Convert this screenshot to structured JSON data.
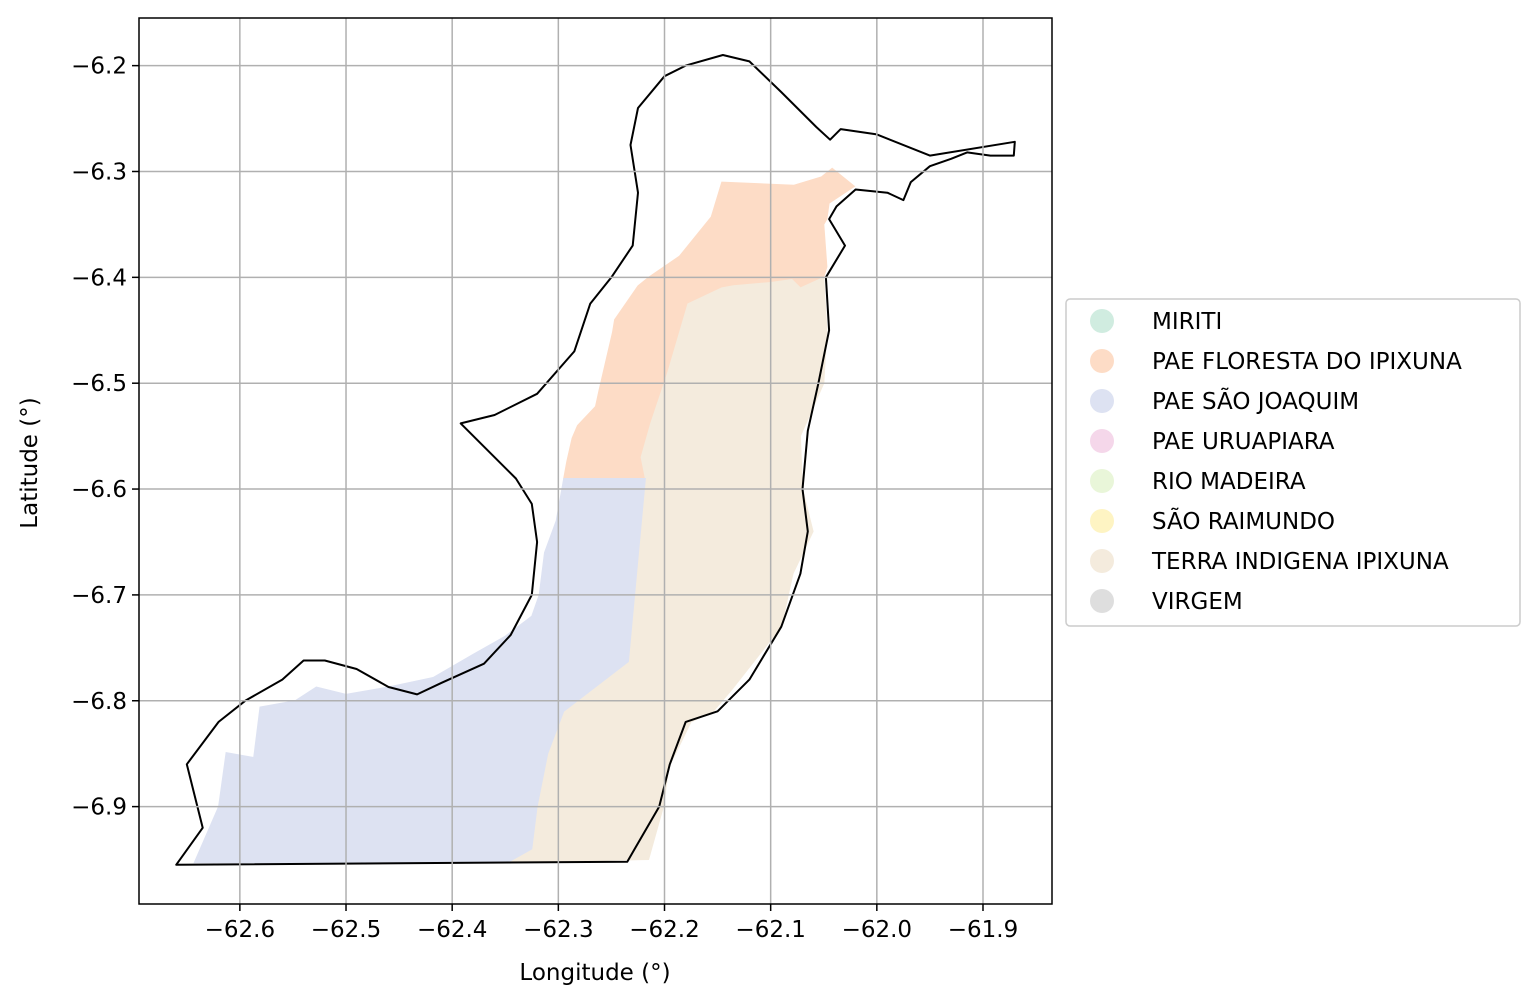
{
  "chart_data": {
    "type": "map",
    "xlabel": "Longitude (°)",
    "ylabel": "Latitude (°)",
    "xlim": [
      -62.695,
      -61.835
    ],
    "ylim": [
      -6.992,
      -6.155
    ],
    "grid": true,
    "xticks": [
      -62.6,
      -62.5,
      -62.4,
      -62.3,
      -62.2,
      -62.1,
      -62.0,
      -61.9
    ],
    "xtick_labels": [
      "−62.6",
      "−62.5",
      "−62.4",
      "−62.3",
      "−62.2",
      "−62.1",
      "−62.0",
      "−61.9"
    ],
    "yticks": [
      -6.2,
      -6.3,
      -6.4,
      -6.5,
      -6.6,
      -6.7,
      -6.8,
      -6.9
    ],
    "ytick_labels": [
      "−6.2",
      "−6.3",
      "−6.4",
      "−6.5",
      "−6.6",
      "−6.7",
      "−6.8",
      "−6.9"
    ],
    "legend_position": "right",
    "legend": [
      {
        "label": "MIRITI",
        "color": "#d0ece0"
      },
      {
        "label": "PAE FLORESTA DO IPIXUNA",
        "color": "#fddcc6"
      },
      {
        "label": "PAE SÃO JOAQUIM",
        "color": "#dde2f2"
      },
      {
        "label": "PAE URUAPIARA",
        "color": "#f5d7ea"
      },
      {
        "label": "RIO MADEIRA",
        "color": "#e9f6d9"
      },
      {
        "label": "SÃO RAIMUNDO",
        "color": "#fef4c3"
      },
      {
        "label": "TERRA INDIGENA IPIXUNA",
        "color": "#f4ebdd"
      },
      {
        "label": "VIRGEM",
        "color": "#dedede"
      }
    ],
    "regions": [
      {
        "name": "PAE FLORESTA DO IPIXUNA",
        "color": "#fddcc6",
        "coords": [
          [
            -62.146,
            -6.31
          ],
          [
            -62.078,
            -6.313
          ],
          [
            -62.052,
            -6.305
          ],
          [
            -62.042,
            -6.297
          ],
          [
            -62.021,
            -6.314
          ],
          [
            -62.045,
            -6.33
          ],
          [
            -62.047,
            -6.345
          ],
          [
            -62.05,
            -6.35
          ],
          [
            -62.047,
            -6.39
          ],
          [
            -62.05,
            -6.4
          ],
          [
            -62.072,
            -6.41
          ],
          [
            -62.08,
            -6.402
          ],
          [
            -62.101,
            -6.405
          ],
          [
            -62.135,
            -6.408
          ],
          [
            -62.146,
            -6.41
          ],
          [
            -62.178,
            -6.425
          ],
          [
            -62.197,
            -6.49
          ],
          [
            -62.213,
            -6.538
          ],
          [
            -62.222,
            -6.57
          ],
          [
            -62.218,
            -6.59
          ],
          [
            -62.295,
            -6.59
          ],
          [
            -62.292,
            -6.574
          ],
          [
            -62.287,
            -6.552
          ],
          [
            -62.282,
            -6.54
          ],
          [
            -62.265,
            -6.522
          ],
          [
            -62.262,
            -6.508
          ],
          [
            -62.256,
            -6.482
          ],
          [
            -62.249,
            -6.452
          ],
          [
            -62.247,
            -6.44
          ],
          [
            -62.225,
            -6.408
          ],
          [
            -62.215,
            -6.4
          ],
          [
            -62.186,
            -6.38
          ],
          [
            -62.156,
            -6.343
          ],
          [
            -62.146,
            -6.31
          ]
        ]
      },
      {
        "name": "TERRA INDIGENA IPIXUNA",
        "color": "#f4ebdd",
        "coords": [
          [
            -62.146,
            -6.41
          ],
          [
            -62.135,
            -6.408
          ],
          [
            -62.101,
            -6.405
          ],
          [
            -62.08,
            -6.402
          ],
          [
            -62.072,
            -6.41
          ],
          [
            -62.05,
            -6.4
          ],
          [
            -62.047,
            -6.45
          ],
          [
            -62.05,
            -6.5
          ],
          [
            -62.072,
            -6.55
          ],
          [
            -62.07,
            -6.6
          ],
          [
            -62.06,
            -6.64
          ],
          [
            -62.079,
            -6.68
          ],
          [
            -62.09,
            -6.73
          ],
          [
            -62.137,
            -6.79
          ],
          [
            -62.154,
            -6.81
          ],
          [
            -62.175,
            -6.82
          ],
          [
            -62.196,
            -6.863
          ],
          [
            -62.201,
            -6.9
          ],
          [
            -62.215,
            -6.95
          ],
          [
            -62.348,
            -6.953
          ],
          [
            -62.325,
            -6.94
          ],
          [
            -62.32,
            -6.9
          ],
          [
            -62.31,
            -6.85
          ],
          [
            -62.295,
            -6.81
          ],
          [
            -62.234,
            -6.763
          ],
          [
            -62.218,
            -6.59
          ],
          [
            -62.222,
            -6.57
          ],
          [
            -62.213,
            -6.538
          ],
          [
            -62.197,
            -6.49
          ],
          [
            -62.178,
            -6.425
          ],
          [
            -62.146,
            -6.41
          ]
        ]
      },
      {
        "name": "PAE SÃO JOAQUIM",
        "color": "#dde2f2",
        "coords": [
          [
            -62.218,
            -6.59
          ],
          [
            -62.234,
            -6.763
          ],
          [
            -62.295,
            -6.81
          ],
          [
            -62.31,
            -6.85
          ],
          [
            -62.32,
            -6.9
          ],
          [
            -62.325,
            -6.94
          ],
          [
            -62.348,
            -6.953
          ],
          [
            -62.643,
            -6.953
          ],
          [
            -62.62,
            -6.9
          ],
          [
            -62.613,
            -6.849
          ],
          [
            -62.562,
            -6.858
          ],
          [
            -62.578,
            -6.863
          ],
          [
            -62.588,
            -6.862
          ],
          [
            -62.581,
            -6.806
          ],
          [
            -62.548,
            -6.8
          ],
          [
            -62.528,
            -6.787
          ],
          [
            -62.5,
            -6.794
          ],
          [
            -62.46,
            -6.787
          ],
          [
            -62.418,
            -6.778
          ],
          [
            -62.38,
            -6.756
          ],
          [
            -62.35,
            -6.739
          ],
          [
            -62.325,
            -6.72
          ],
          [
            -62.318,
            -6.7
          ],
          [
            -62.313,
            -6.66
          ],
          [
            -62.302,
            -6.63
          ],
          [
            -62.295,
            -6.59
          ],
          [
            -62.218,
            -6.59
          ]
        ]
      }
    ],
    "outline": [
      [
        -62.18,
        -6.2
      ],
      [
        -62.145,
        -6.19
      ],
      [
        -62.12,
        -6.196
      ],
      [
        -62.09,
        -6.225
      ],
      [
        -62.057,
        -6.258
      ],
      [
        -62.044,
        -6.27
      ],
      [
        -62.034,
        -6.26
      ],
      [
        -62.0,
        -6.265
      ],
      [
        -61.95,
        -6.285
      ],
      [
        -61.87,
        -6.272
      ],
      [
        -61.871,
        -6.285
      ],
      [
        -61.893,
        -6.285
      ],
      [
        -61.915,
        -6.282
      ],
      [
        -61.93,
        -6.288
      ],
      [
        -61.95,
        -6.295
      ],
      [
        -61.968,
        -6.31
      ],
      [
        -61.975,
        -6.327
      ],
      [
        -61.99,
        -6.32
      ],
      [
        -62.02,
        -6.317
      ],
      [
        -62.038,
        -6.333
      ],
      [
        -62.045,
        -6.345
      ],
      [
        -62.03,
        -6.37
      ],
      [
        -62.048,
        -6.4
      ],
      [
        -62.045,
        -6.45
      ],
      [
        -62.055,
        -6.5
      ],
      [
        -62.065,
        -6.545
      ],
      [
        -62.07,
        -6.6
      ],
      [
        -62.065,
        -6.64
      ],
      [
        -62.072,
        -6.68
      ],
      [
        -62.09,
        -6.73
      ],
      [
        -62.12,
        -6.78
      ],
      [
        -62.15,
        -6.81
      ],
      [
        -62.18,
        -6.82
      ],
      [
        -62.195,
        -6.86
      ],
      [
        -62.205,
        -6.9
      ],
      [
        -62.235,
        -6.952
      ],
      [
        -62.66,
        -6.955
      ],
      [
        -62.635,
        -6.92
      ],
      [
        -62.65,
        -6.86
      ],
      [
        -62.62,
        -6.82
      ],
      [
        -62.595,
        -6.8
      ],
      [
        -62.56,
        -6.78
      ],
      [
        -62.54,
        -6.762
      ],
      [
        -62.52,
        -6.762
      ],
      [
        -62.49,
        -6.77
      ],
      [
        -62.46,
        -6.787
      ],
      [
        -62.433,
        -6.794
      ],
      [
        -62.41,
        -6.783
      ],
      [
        -62.37,
        -6.765
      ],
      [
        -62.345,
        -6.738
      ],
      [
        -62.325,
        -6.7
      ],
      [
        -62.32,
        -6.65
      ],
      [
        -62.325,
        -6.614
      ],
      [
        -62.34,
        -6.59
      ],
      [
        -62.37,
        -6.56
      ],
      [
        -62.392,
        -6.538
      ],
      [
        -62.36,
        -6.53
      ],
      [
        -62.32,
        -6.51
      ],
      [
        -62.285,
        -6.47
      ],
      [
        -62.27,
        -6.425
      ],
      [
        -62.25,
        -6.4
      ],
      [
        -62.23,
        -6.37
      ],
      [
        -62.225,
        -6.32
      ],
      [
        -62.232,
        -6.275
      ],
      [
        -62.225,
        -6.24
      ],
      [
        -62.2,
        -6.21
      ],
      [
        -62.18,
        -6.2
      ]
    ]
  }
}
